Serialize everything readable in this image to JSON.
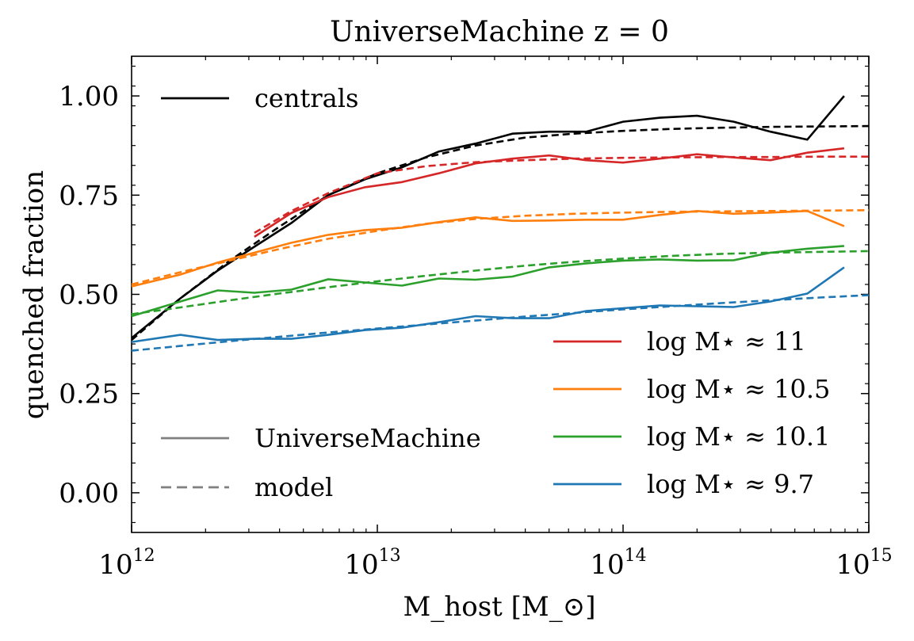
{
  "chart_data": {
    "type": "line",
    "title": "UniverseMachine z = 0",
    "xlabel": "M_host [M_⊙]",
    "ylabel": "quenched fraction",
    "xscale": "log",
    "xlim": [
      1000000000000.0,
      1000000000000000.0
    ],
    "ylim": [
      -0.1,
      1.1
    ],
    "yticks": [
      0.0,
      0.25,
      0.5,
      0.75,
      1.0
    ],
    "ytick_labels": [
      "0.00",
      "0.25",
      "0.50",
      "0.75",
      "1.00"
    ],
    "xtick_labels": [
      "10^12",
      "10^13",
      "10^14",
      "10^15"
    ],
    "grid": false,
    "legend_top_left": [
      {
        "label": "centrals",
        "color": "#000000",
        "style": "solid"
      }
    ],
    "legend_bottom_left": [
      {
        "label": "UniverseMachine",
        "color": "#808080",
        "style": "solid"
      },
      {
        "label": "model",
        "color": "#808080",
        "style": "dashed"
      }
    ],
    "legend_bottom_right": [
      {
        "label": "log M⋆ ≈ 11",
        "color": "#d62728"
      },
      {
        "label": "log M⋆ ≈ 10.5",
        "color": "#ff7f0e"
      },
      {
        "label": "log M⋆ ≈ 10.1",
        "color": "#2ca02c"
      },
      {
        "label": "log M⋆ ≈ 9.7",
        "color": "#1f77b4"
      }
    ],
    "series": [
      {
        "group": "centrals",
        "kind": "UniverseMachine",
        "color": "#000000",
        "style": "solid",
        "x": [
          1000000000000.0,
          1580000000000.0,
          2240000000000.0,
          3160000000000.0,
          4470000000000.0,
          6310000000000.0,
          8910000000000.0,
          12600000000000.0,
          17800000000000.0,
          25100000000000.0,
          35500000000000.0,
          50100000000000.0,
          70800000000000.0,
          100000000000000.0,
          141000000000000.0,
          200000000000000.0,
          282000000000000.0,
          398000000000000.0,
          562000000000000.0,
          794000000000000.0
        ],
        "y": [
          0.39,
          0.49,
          0.56,
          0.62,
          0.68,
          0.75,
          0.79,
          0.82,
          0.86,
          0.88,
          0.905,
          0.91,
          0.91,
          0.935,
          0.945,
          0.95,
          0.935,
          0.91,
          0.89,
          1.0
        ]
      },
      {
        "group": "centrals",
        "kind": "model",
        "color": "#000000",
        "style": "dashed",
        "x": [
          1000000000000.0,
          1580000000000.0,
          2510000000000.0,
          3980000000000.0,
          6310000000000.0,
          10000000000000.0,
          15800000000000.0,
          25100000000000.0,
          39800000000000.0,
          63100000000000.0,
          100000000000000.0,
          158000000000000.0,
          251000000000000.0,
          398000000000000.0,
          631000000000000.0,
          1000000000000000.0
        ],
        "y": [
          0.385,
          0.49,
          0.585,
          0.67,
          0.75,
          0.805,
          0.845,
          0.875,
          0.895,
          0.905,
          0.912,
          0.917,
          0.92,
          0.922,
          0.923,
          0.924
        ]
      },
      {
        "group": "log M⋆ ≈ 11",
        "kind": "UniverseMachine",
        "color": "#d62728",
        "style": "solid",
        "x": [
          3160000000000.0,
          4470000000000.0,
          6310000000000.0,
          8910000000000.0,
          12600000000000.0,
          17800000000000.0,
          25100000000000.0,
          35500000000000.0,
          50100000000000.0,
          70800000000000.0,
          100000000000000.0,
          141000000000000.0,
          200000000000000.0,
          282000000000000.0,
          398000000000000.0,
          562000000000000.0,
          794000000000000.0
        ],
        "y": [
          0.645,
          0.705,
          0.745,
          0.77,
          0.783,
          0.805,
          0.83,
          0.842,
          0.85,
          0.838,
          0.832,
          0.842,
          0.853,
          0.845,
          0.838,
          0.857,
          0.868
        ]
      },
      {
        "group": "log M⋆ ≈ 11",
        "kind": "model",
        "color": "#d62728",
        "style": "dashed",
        "x": [
          3160000000000.0,
          4470000000000.0,
          6310000000000.0,
          10000000000000.0,
          15800000000000.0,
          25100000000000.0,
          39800000000000.0,
          63100000000000.0,
          100000000000000.0,
          158000000000000.0,
          251000000000000.0,
          398000000000000.0,
          631000000000000.0,
          1000000000000000.0
        ],
        "y": [
          0.655,
          0.71,
          0.755,
          0.805,
          0.823,
          0.833,
          0.838,
          0.842,
          0.844,
          0.845,
          0.846,
          0.846,
          0.847,
          0.847
        ]
      },
      {
        "group": "log M⋆ ≈ 10.5",
        "kind": "UniverseMachine",
        "color": "#ff7f0e",
        "style": "solid",
        "x": [
          1000000000000.0,
          1580000000000.0,
          2240000000000.0,
          3160000000000.0,
          4470000000000.0,
          6310000000000.0,
          8910000000000.0,
          12600000000000.0,
          17800000000000.0,
          25100000000000.0,
          35500000000000.0,
          50100000000000.0,
          70800000000000.0,
          100000000000000.0,
          141000000000000.0,
          200000000000000.0,
          282000000000000.0,
          398000000000000.0,
          562000000000000.0,
          794000000000000.0
        ],
        "y": [
          0.52,
          0.55,
          0.58,
          0.605,
          0.63,
          0.65,
          0.662,
          0.668,
          0.682,
          0.694,
          0.685,
          0.686,
          0.688,
          0.688,
          0.7,
          0.71,
          0.703,
          0.706,
          0.71,
          0.672
        ]
      },
      {
        "group": "log M⋆ ≈ 10.5",
        "kind": "model",
        "color": "#ff7f0e",
        "style": "dashed",
        "x": [
          1000000000000.0,
          1580000000000.0,
          2510000000000.0,
          3980000000000.0,
          6310000000000.0,
          10000000000000.0,
          15800000000000.0,
          25100000000000.0,
          39800000000000.0,
          63100000000000.0,
          100000000000000.0,
          158000000000000.0,
          251000000000000.0,
          398000000000000.0,
          631000000000000.0,
          1000000000000000.0
        ],
        "y": [
          0.525,
          0.556,
          0.585,
          0.614,
          0.64,
          0.66,
          0.678,
          0.69,
          0.698,
          0.703,
          0.706,
          0.708,
          0.709,
          0.71,
          0.711,
          0.712
        ]
      },
      {
        "group": "log M⋆ ≈ 10.1",
        "kind": "UniverseMachine",
        "color": "#2ca02c",
        "style": "solid",
        "x": [
          1000000000000.0,
          1580000000000.0,
          2240000000000.0,
          3160000000000.0,
          4470000000000.0,
          6310000000000.0,
          8910000000000.0,
          12600000000000.0,
          17800000000000.0,
          25100000000000.0,
          35500000000000.0,
          50100000000000.0,
          70800000000000.0,
          100000000000000.0,
          141000000000000.0,
          200000000000000.0,
          282000000000000.0,
          398000000000000.0,
          562000000000000.0,
          794000000000000.0
        ],
        "y": [
          0.445,
          0.482,
          0.51,
          0.504,
          0.512,
          0.538,
          0.53,
          0.522,
          0.54,
          0.537,
          0.545,
          0.568,
          0.578,
          0.585,
          0.588,
          0.585,
          0.586,
          0.605,
          0.615,
          0.622
        ]
      },
      {
        "group": "log M⋆ ≈ 10.1",
        "kind": "model",
        "color": "#2ca02c",
        "style": "dashed",
        "x": [
          1000000000000.0,
          1580000000000.0,
          2510000000000.0,
          3980000000000.0,
          6310000000000.0,
          10000000000000.0,
          15800000000000.0,
          25100000000000.0,
          39800000000000.0,
          63100000000000.0,
          100000000000000.0,
          158000000000000.0,
          251000000000000.0,
          398000000000000.0,
          631000000000000.0,
          1000000000000000.0
        ],
        "y": [
          0.45,
          0.467,
          0.485,
          0.502,
          0.518,
          0.533,
          0.547,
          0.56,
          0.572,
          0.582,
          0.59,
          0.597,
          0.602,
          0.605,
          0.607,
          0.609
        ]
      },
      {
        "group": "log M⋆ ≈ 9.7",
        "kind": "UniverseMachine",
        "color": "#1f77b4",
        "style": "solid",
        "x": [
          1000000000000.0,
          1580000000000.0,
          2240000000000.0,
          3160000000000.0,
          4470000000000.0,
          6310000000000.0,
          8910000000000.0,
          12600000000000.0,
          17800000000000.0,
          25100000000000.0,
          35500000000000.0,
          50100000000000.0,
          70800000000000.0,
          100000000000000.0,
          141000000000000.0,
          200000000000000.0,
          282000000000000.0,
          398000000000000.0,
          562000000000000.0,
          794000000000000.0
        ],
        "y": [
          0.38,
          0.398,
          0.385,
          0.388,
          0.388,
          0.398,
          0.41,
          0.416,
          0.43,
          0.445,
          0.44,
          0.44,
          0.458,
          0.465,
          0.472,
          0.47,
          0.468,
          0.482,
          0.502,
          0.568
        ]
      },
      {
        "group": "log M⋆ ≈ 9.7",
        "kind": "model",
        "color": "#1f77b4",
        "style": "dashed",
        "x": [
          1000000000000.0,
          1580000000000.0,
          2510000000000.0,
          3980000000000.0,
          6310000000000.0,
          10000000000000.0,
          15800000000000.0,
          25100000000000.0,
          39800000000000.0,
          63100000000000.0,
          100000000000000.0,
          158000000000000.0,
          251000000000000.0,
          398000000000000.0,
          631000000000000.0,
          1000000000000000.0
        ],
        "y": [
          0.358,
          0.37,
          0.382,
          0.393,
          0.404,
          0.414,
          0.424,
          0.434,
          0.444,
          0.453,
          0.462,
          0.47,
          0.478,
          0.485,
          0.492,
          0.498
        ]
      }
    ]
  }
}
